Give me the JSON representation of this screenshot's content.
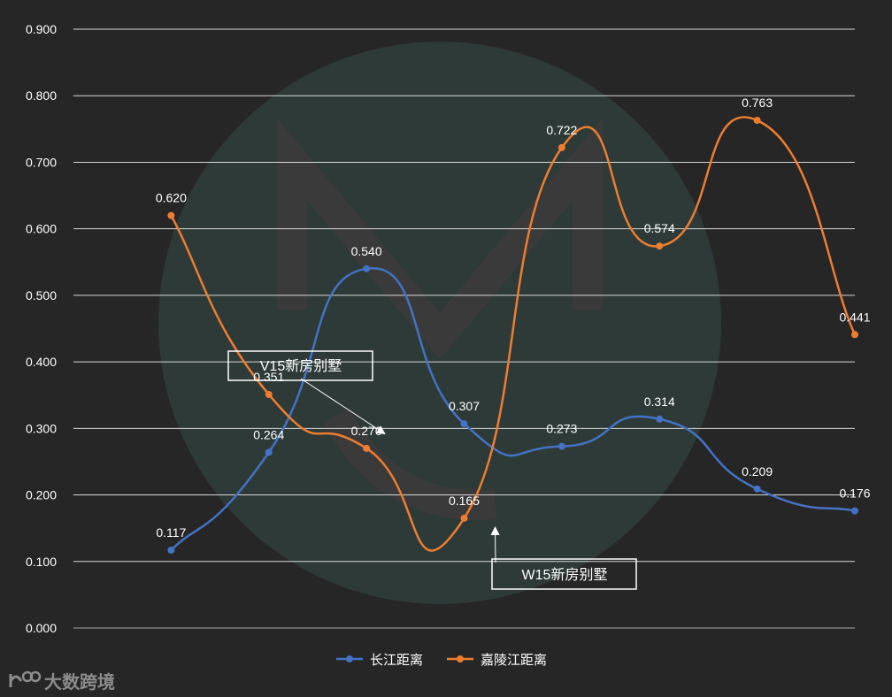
{
  "chart_data": {
    "type": "line",
    "smooth": true,
    "ylim": [
      0,
      0.9
    ],
    "ytick_step": 0.1,
    "ytick_labels": [
      "0.000",
      "0.100",
      "0.200",
      "0.300",
      "0.400",
      "0.500",
      "0.600",
      "0.700",
      "0.800",
      "0.900"
    ],
    "grid": true,
    "legend": "bottom-center",
    "series": [
      {
        "name": "长江距离",
        "color": "#4472C4",
        "values": [
          0.117,
          0.264,
          0.54,
          0.307,
          0.273,
          0.314,
          0.209,
          0.176
        ],
        "labels": [
          "0.117",
          "0.264",
          "0.540",
          "0.307",
          "0.273",
          "0.314",
          "0.209",
          "0.176"
        ]
      },
      {
        "name": "嘉陵江距离",
        "color": "#ED7D31",
        "values": [
          0.62,
          0.351,
          0.27,
          0.165,
          0.722,
          0.574,
          0.763,
          0.441
        ],
        "labels": [
          "0.620",
          "0.351",
          "0.270",
          "0.165",
          "0.722",
          "0.574",
          "0.763",
          "0.441"
        ]
      }
    ],
    "annotations": [
      {
        "text": "V15新房别墅",
        "points_to": {
          "category_index": 2,
          "y": 0.29
        }
      },
      {
        "text": "W15新房别墅",
        "points_to": {
          "category_index": 3,
          "y": 0.145
        }
      }
    ]
  },
  "watermark": {
    "text": "大数跨境",
    "logo_icon": "dashuju-logo-icon"
  }
}
